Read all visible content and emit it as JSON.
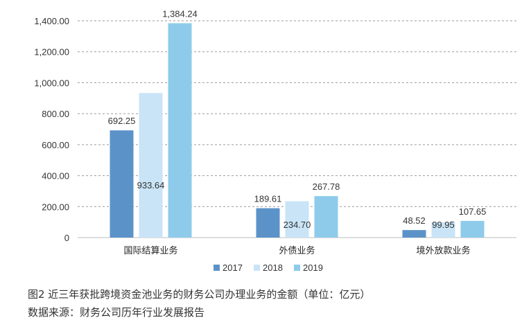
{
  "chart_data": {
    "type": "bar",
    "categories": [
      "国际结算业务",
      "外债业务",
      "境外放款业务"
    ],
    "series": [
      {
        "name": "2017",
        "values": [
          692.25,
          189.61,
          48.52
        ],
        "labels": [
          "692.25",
          "189.61",
          "48.52"
        ]
      },
      {
        "name": "2018",
        "values": [
          933.64,
          234.7,
          99.95
        ],
        "labels": [
          "933.64",
          "234.70",
          "99.95"
        ]
      },
      {
        "name": "2019",
        "values": [
          1384.24,
          267.78,
          107.65
        ],
        "labels": [
          "1,384.24",
          "267.78",
          "107.65"
        ]
      }
    ],
    "ylim": [
      0,
      1400
    ],
    "yticks": [
      0,
      200,
      400,
      600,
      800,
      1000,
      1200,
      1400
    ],
    "ytick_labels": [
      "0",
      "200.00",
      "400.00",
      "600.00",
      "800.00",
      "1,000.00",
      "1,200.00",
      "1,400.00"
    ],
    "grid": true,
    "legend_position": "bottom",
    "colors": [
      "#5b93c9",
      "#c9e4f6",
      "#8ecbea"
    ]
  },
  "caption": {
    "line1": "图2 近三年获批跨境资金池业务的财务公司办理业务的金额（单位：亿元）",
    "line2": "数据来源：财务公司历年行业发展报告"
  }
}
